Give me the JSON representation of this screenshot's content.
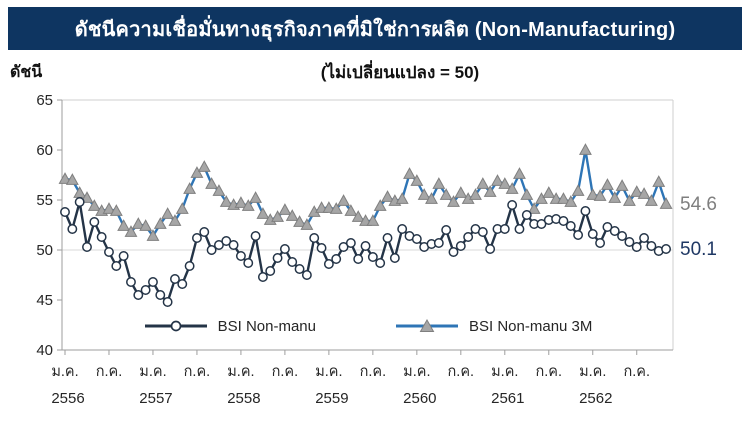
{
  "header": {
    "title": "ดัชนีความเชื่อมั่นทางธุรกิจภาคที่มิใช่การผลิต (Non-Manufacturing)"
  },
  "chart": {
    "subtitle": "(ไม่เปลี่ยนแปลง = 50)",
    "y_axis_title": "ดัชนี"
  },
  "colors": {
    "title_bar_bg": "#0E3561",
    "title_text": "#FFFFFF",
    "axis_line": "#9E9E9E",
    "plot_border": "#CFCFCF",
    "gridline": "#D9D9D9",
    "tick_text": "#262626"
  },
  "chart_data": {
    "type": "line",
    "title": "ดัชนีความเชื่อมั่นทางธุรกิจภาคที่มิใช่การผลิต (Non-Manufacturing)",
    "subtitle": "(ไม่เปลี่ยนแปลง = 50)",
    "ylabel": "ดัชนี",
    "ylim": [
      40,
      65
    ],
    "yticks": [
      65,
      60,
      55,
      50,
      45,
      40
    ],
    "reference_value": 50,
    "grid": "horizontal reference line at 50 only; plot border top/right light gray",
    "legend_position": "bottom-inside",
    "x_tick_labels": [
      "ม.ค.",
      "ก.ค.",
      "ม.ค.",
      "ก.ค.",
      "ม.ค.",
      "ก.ค.",
      "ม.ค.",
      "ก.ค.",
      "ม.ค.",
      "ก.ค.",
      "ม.ค.",
      "ก.ค.",
      "ม.ค.",
      "ก.ค."
    ],
    "x_year_labels": [
      "2556",
      "2557",
      "2558",
      "2559",
      "2560",
      "2561",
      "2562"
    ],
    "series": [
      {
        "name": "BSI Non-manu",
        "marker": "circle",
        "line_color": "#243447",
        "marker_fill": "#FFFFFF",
        "marker_stroke": "#243447",
        "end_label": "50.1",
        "end_label_color": "#1F3864",
        "values": [
          53.8,
          52.1,
          54.8,
          50.3,
          52.8,
          51.3,
          49.8,
          48.4,
          49.4,
          46.8,
          45.5,
          46.0,
          46.8,
          45.5,
          44.8,
          47.1,
          46.6,
          48.4,
          51.2,
          51.8,
          50.0,
          50.5,
          50.9,
          50.5,
          49.4,
          48.7,
          51.4,
          47.3,
          47.9,
          49.2,
          50.1,
          48.8,
          48.1,
          47.5,
          51.2,
          50.2,
          48.6,
          49.1,
          50.3,
          50.7,
          49.1,
          50.4,
          49.3,
          48.7,
          51.2,
          49.2,
          52.1,
          51.4,
          51.1,
          50.3,
          50.6,
          50.7,
          52.0,
          49.8,
          50.4,
          51.3,
          52.1,
          51.8,
          50.1,
          52.1,
          52.1,
          54.5,
          52.1,
          53.5,
          52.6,
          52.6,
          53.0,
          53.1,
          52.9,
          52.4,
          51.5,
          53.9,
          51.6,
          50.7,
          52.3,
          51.9,
          51.4,
          50.8,
          50.3,
          51.2,
          50.4,
          49.9,
          50.1
        ]
      },
      {
        "name": "BSI Non-manu 3M",
        "marker": "triangle",
        "line_color": "#2E75B6",
        "marker_fill": "#A6A6A6",
        "marker_stroke": "#7F7F7F",
        "end_label": "54.6",
        "end_label_color": "#7F7F7F",
        "values": [
          57.1,
          57.0,
          55.7,
          55.2,
          54.4,
          53.9,
          54.1,
          53.9,
          52.4,
          51.8,
          52.6,
          52.4,
          51.4,
          52.6,
          53.6,
          52.9,
          54.1,
          56.1,
          57.7,
          58.3,
          56.6,
          55.9,
          54.8,
          54.5,
          54.7,
          54.4,
          55.2,
          53.6,
          53.0,
          53.3,
          54.0,
          53.4,
          52.8,
          52.5,
          53.8,
          54.2,
          54.2,
          54.1,
          54.9,
          53.9,
          53.3,
          52.9,
          52.9,
          54.4,
          55.3,
          54.9,
          55.1,
          57.6,
          56.9,
          55.5,
          55.1,
          56.6,
          55.5,
          54.8,
          55.7,
          55.1,
          55.5,
          56.6,
          55.8,
          56.9,
          56.6,
          56.1,
          57.6,
          55.5,
          54.1,
          55.1,
          55.7,
          55.1,
          55.1,
          54.8,
          55.9,
          60.0,
          55.5,
          55.4,
          56.5,
          55.2,
          56.4,
          54.9,
          55.8,
          55.6,
          54.9,
          56.8,
          54.6
        ]
      }
    ]
  }
}
